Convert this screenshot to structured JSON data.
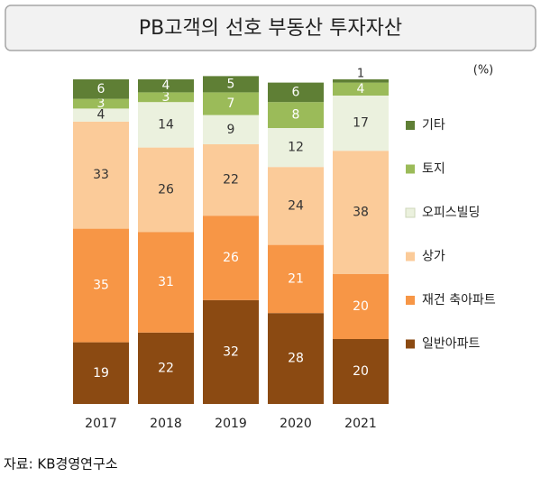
{
  "chart_data": {
    "type": "stacked_bar",
    "title": "PB고객의 선호 부동산 투자자산",
    "unit_label": "(%)",
    "source": "자료: KB경영연구소",
    "categories": [
      "2017",
      "2018",
      "2019",
      "2020",
      "2021"
    ],
    "ylim": [
      0,
      100
    ],
    "series": [
      {
        "name": "일반아파트",
        "color": "#8b4a12",
        "label_color": "#ffffff",
        "values": [
          19,
          22,
          32,
          28,
          20
        ]
      },
      {
        "name": "재건 축아파트",
        "color": "#f79646",
        "label_color": "#ffffff",
        "values": [
          35,
          31,
          26,
          21,
          20
        ]
      },
      {
        "name": "상가",
        "color": "#fbcb99",
        "label_color": "#333333",
        "values": [
          33,
          26,
          22,
          24,
          38
        ]
      },
      {
        "name": "오피스빌딩",
        "color": "#ebf1de",
        "label_color": "#333333",
        "values": [
          4,
          14,
          9,
          12,
          17
        ]
      },
      {
        "name": "토지",
        "color": "#9bbb59",
        "label_color": "#ffffff",
        "values": [
          3,
          3,
          7,
          8,
          4
        ]
      },
      {
        "name": "기타",
        "color": "#5f7f35",
        "label_color": "#ffffff",
        "values": [
          6,
          4,
          5,
          6,
          1
        ]
      }
    ]
  }
}
